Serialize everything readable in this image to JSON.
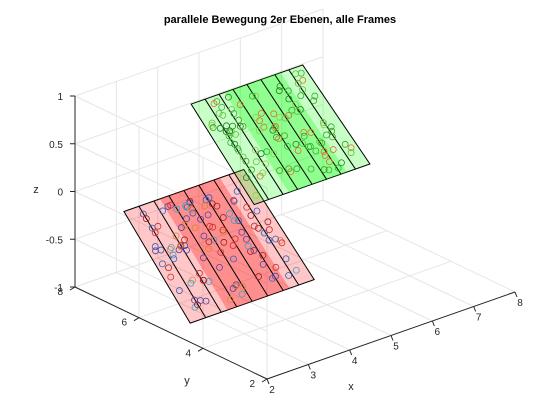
{
  "chart_data": {
    "type": "scatter3d",
    "title": "parallele Bewegung 2er Ebenen, alle Frames",
    "xlabel": "x",
    "ylabel": "y",
    "zlabel": "z",
    "xlim": [
      2,
      8
    ],
    "ylim": [
      2,
      8
    ],
    "zlim": [
      -1,
      1
    ],
    "xticks": [
      "2",
      "3",
      "4",
      "5",
      "6",
      "7",
      "8"
    ],
    "yticks": [
      "2",
      "4",
      "6",
      "8"
    ],
    "zticks": [
      "-1",
      "-0.5",
      "0",
      "0.5",
      "1"
    ],
    "grid": true,
    "planes": [
      {
        "color": "#ff0000",
        "corners": [
          [
            2.1,
            6.6,
            0.0
          ],
          [
            2.0,
            4.4,
            -0.8
          ],
          [
            5.0,
            4.4,
            -0.8
          ],
          [
            5.0,
            6.6,
            0.0
          ]
        ],
        "marker_colors": [
          "#d03030",
          "#a02020",
          "#3060c0",
          "#5040a0",
          "#e08030",
          "#40a0d0"
        ]
      },
      {
        "color": "#00ff00",
        "corners": [
          [
            4.5,
            7.6,
            0.6
          ],
          [
            4.4,
            5.5,
            -0.1
          ],
          [
            7.2,
            5.5,
            -0.1
          ],
          [
            7.2,
            7.6,
            0.6
          ]
        ],
        "marker_colors": [
          "#30b030",
          "#60c040",
          "#208020",
          "#90d050",
          "#e07030",
          "#40a020"
        ]
      }
    ]
  }
}
